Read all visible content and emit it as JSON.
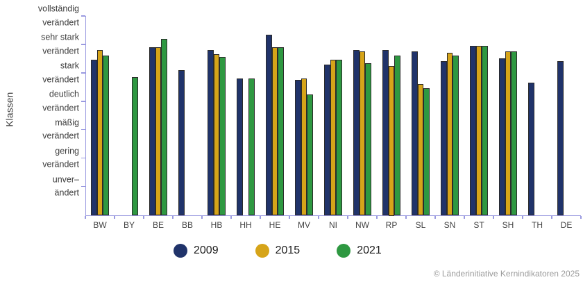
{
  "chart": {
    "ylabel": "Klassen",
    "footer": "© Länderinitiative Kernindikatoren 2025"
  },
  "chart_data": {
    "type": "bar",
    "title": "",
    "xlabel": "",
    "ylabel": "Klassen",
    "grid": false,
    "legend_position": "bottom",
    "ylim": [
      0,
      7
    ],
    "categories": [
      "BW",
      "BY",
      "BE",
      "BB",
      "HB",
      "HH",
      "HE",
      "MV",
      "NI",
      "NW",
      "RP",
      "SL",
      "SN",
      "ST",
      "SH",
      "TH",
      "DE"
    ],
    "series": [
      {
        "name": "2009",
        "color": "#20336a",
        "values": [
          5.45,
          null,
          5.9,
          5.1,
          5.8,
          4.8,
          6.35,
          4.75,
          5.3,
          5.8,
          5.8,
          5.75,
          5.4,
          5.95,
          5.5,
          4.65,
          5.4
        ]
      },
      {
        "name": "2015",
        "color": "#d6a419",
        "values": [
          5.8,
          null,
          5.9,
          null,
          5.65,
          null,
          5.9,
          4.8,
          5.45,
          5.75,
          5.25,
          4.6,
          5.7,
          5.95,
          5.75,
          null,
          null
        ]
      },
      {
        "name": "2021",
        "color": "#2e9841",
        "values": [
          5.6,
          4.85,
          6.2,
          null,
          5.55,
          4.8,
          5.9,
          4.25,
          5.45,
          5.35,
          5.6,
          4.45,
          5.6,
          5.95,
          5.75,
          null,
          null
        ]
      }
    ],
    "ytick_values": [
      1,
      2,
      3,
      4,
      5,
      6,
      7
    ],
    "ytick_labels": [
      "unver–\nändert",
      "gering\nverändert",
      "mäßig\nverändert",
      "deutlich\nverändert",
      "stark\nverändert",
      "sehr stark\nverändert",
      "vollständig\nverändert"
    ]
  }
}
